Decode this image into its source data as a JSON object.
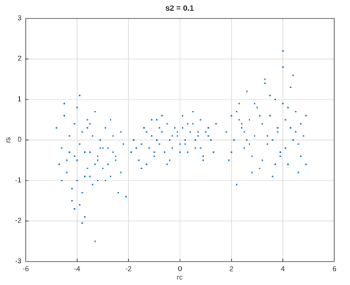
{
  "chart_data": {
    "type": "scatter",
    "title": "s2 = 0.1",
    "xlabel": "rc",
    "ylabel": "rs",
    "color": "#0072bd",
    "grid": true,
    "xlim": [
      -6,
      6
    ],
    "xticks": [
      -6,
      -4,
      -2,
      0,
      2,
      4,
      6
    ],
    "ylim": [
      -3,
      3
    ],
    "yticks": [
      -3,
      -2,
      -1,
      0,
      1,
      2,
      3
    ],
    "x": [
      -4.8,
      -4.6,
      -4.5,
      -4.4,
      -4.3,
      -4.2,
      -4.1,
      -4.0,
      -3.9,
      -3.8,
      -3.7,
      -3.6,
      -3.5,
      -3.4,
      -3.3,
      -3.2,
      -3.1,
      -3.0,
      -2.9,
      -2.8,
      -2.7,
      -2.6,
      -2.5,
      -2.4,
      -2.3,
      -2.2,
      -2.1,
      -4.7,
      -4.5,
      -4.3,
      -4.1,
      -3.9,
      -3.7,
      -3.5,
      -3.3,
      -3.1,
      -2.9,
      -2.7,
      -2.5,
      -2.3,
      -4.4,
      -4.0,
      -3.8,
      -3.6,
      -3.4,
      -3.2,
      -3.0,
      -2.8,
      -4.2,
      -3.9,
      -3.7,
      -3.5,
      -4.6,
      -4.1,
      -3.3,
      -2.6,
      -3.8,
      -4.0,
      -3.6,
      -3.2,
      -1.9,
      -1.8,
      -1.6,
      -1.5,
      -1.4,
      -1.3,
      -1.2,
      -1.1,
      -1.0,
      -0.9,
      -0.8,
      -0.7,
      -0.6,
      -0.5,
      -0.4,
      -0.3,
      -0.2,
      -0.1,
      0.0,
      0.1,
      0.2,
      0.3,
      0.4,
      0.5,
      0.6,
      0.7,
      0.8,
      0.9,
      1.0,
      1.1,
      1.2,
      1.3,
      1.4,
      -1.7,
      -1.3,
      -1.0,
      -0.7,
      -0.4,
      -0.1,
      0.2,
      0.5,
      0.8,
      1.1,
      -1.5,
      -1.1,
      -0.8,
      -0.3,
      0.0,
      0.3,
      0.6,
      0.9,
      -0.9,
      -0.5,
      0.1,
      0.7,
      1.8,
      1.9,
      2.0,
      2.1,
      2.2,
      2.3,
      2.4,
      2.5,
      2.6,
      2.7,
      2.8,
      2.9,
      3.0,
      3.1,
      3.2,
      3.3,
      3.4,
      3.5,
      3.6,
      3.7,
      3.8,
      3.9,
      4.0,
      4.1,
      4.2,
      4.3,
      4.4,
      4.5,
      4.6,
      4.7,
      4.8,
      4.9,
      2.0,
      2.3,
      2.6,
      2.9,
      3.2,
      3.5,
      3.8,
      4.1,
      4.4,
      4.7,
      2.2,
      2.5,
      2.8,
      3.1,
      3.4,
      3.7,
      4.0,
      4.3,
      4.6,
      4.9,
      3.3,
      3.6,
      3.9,
      4.2,
      2.4,
      2.7,
      4.0,
      4.5
    ],
    "values": [
      0.3,
      -0.2,
      0.6,
      -0.8,
      0.1,
      -1.2,
      0.4,
      -0.5,
      -1.6,
      0.2,
      -0.9,
      0.5,
      -0.3,
      -1.1,
      0.7,
      -0.4,
      0.0,
      -0.7,
      0.3,
      -0.2,
      -0.9,
      0.1,
      -0.5,
      -1.3,
      0.2,
      -0.1,
      -1.4,
      -0.6,
      0.9,
      -0.3,
      -1.7,
      -0.1,
      -1.9,
      0.4,
      -0.6,
      -0.2,
      -1.0,
      0.5,
      -0.4,
      -0.8,
      -0.5,
      0.8,
      -1.3,
      -0.7,
      0.1,
      -1.0,
      -0.2,
      -0.6,
      -1.5,
      1.1,
      -0.3,
      -0.9,
      -1.0,
      -0.4,
      -2.5,
      -0.3,
      -2.05,
      -1.0,
      0.3,
      -0.5,
      -0.3,
      0.0,
      -0.5,
      -0.1,
      0.3,
      -0.6,
      -0.2,
      0.1,
      -0.4,
      0.5,
      -0.1,
      0.2,
      -0.3,
      0.4,
      0.0,
      -0.2,
      0.3,
      0.1,
      -0.1,
      0.6,
      0.0,
      -0.3,
      0.2,
      0.4,
      -0.2,
      0.1,
      0.5,
      -0.4,
      0.2,
      0.3,
      0.0,
      -0.3,
      0.4,
      -0.2,
      0.2,
      -0.3,
      0.6,
      -0.5,
      0.2,
      -0.1,
      0.7,
      -0.2,
      0.1,
      -0.7,
      0.5,
      0.3,
      0.1,
      -0.3,
      0.4,
      0.0,
      -0.5,
      0.0,
      -0.6,
      0.3,
      0.2,
      0.2,
      -0.5,
      0.6,
      0.0,
      -1.1,
      0.9,
      0.3,
      -0.2,
      1.2,
      0.5,
      -0.4,
      0.1,
      0.8,
      -0.7,
      0.4,
      1.5,
      -0.1,
      0.6,
      -0.9,
      1.0,
      0.2,
      -0.3,
      1.8,
      0.5,
      -0.6,
      1.3,
      0.0,
      0.7,
      -0.8,
      0.4,
      0.1,
      -0.6,
      -0.3,
      0.5,
      0.0,
      0.9,
      -0.5,
      1.1,
      0.3,
      -0.2,
      1.6,
      -0.4,
      0.7,
      0.2,
      -0.8,
      0.6,
      0.1,
      -0.6,
      0.9,
      0.3,
      -0.1,
      0.6,
      1.4,
      0.0,
      -0.4,
      0.8,
      0.4,
      -0.1,
      2.2,
      0.2
    ]
  }
}
